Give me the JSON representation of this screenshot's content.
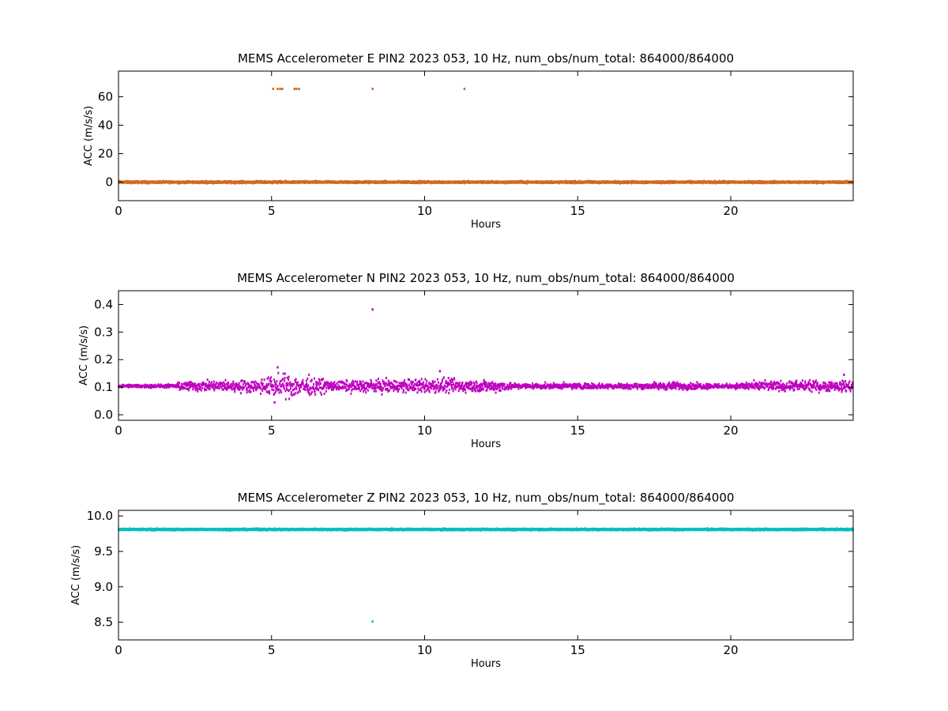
{
  "chart_data": [
    {
      "type": "scatter",
      "title": "MEMS Accelerometer E PIN2 2023 053, 10 Hz, num_obs/num_total: 864000/864000",
      "xlabel": "Hours",
      "ylabel": "ACC (m/s/s)",
      "xlim": [
        0,
        24
      ],
      "ylim": [
        -13,
        78
      ],
      "xticks": [
        0,
        5,
        10,
        15,
        20
      ],
      "yticks": [
        0,
        20,
        40,
        60
      ],
      "xtick_labels": [
        "0",
        "5",
        "10",
        "15",
        "20"
      ],
      "ytick_labels": [
        "0",
        "20",
        "40",
        "60"
      ],
      "grid": false,
      "color": "#d2691e",
      "baseline": {
        "y_mean": 0.0,
        "spread": 0.6
      },
      "outliers": [
        {
          "x": 5.05,
          "y": 65.5
        },
        {
          "x": 5.2,
          "y": 65.5
        },
        {
          "x": 5.28,
          "y": 65.5
        },
        {
          "x": 5.35,
          "y": 65.5
        },
        {
          "x": 5.75,
          "y": 65.5
        },
        {
          "x": 5.82,
          "y": 65.5
        },
        {
          "x": 5.9,
          "y": 65.5
        },
        {
          "x": 8.3,
          "y": 65.5
        },
        {
          "x": 11.3,
          "y": 65.5
        }
      ]
    },
    {
      "type": "scatter",
      "title": "MEMS Accelerometer N PIN2 2023 053, 10 Hz, num_obs/num_total: 864000/864000",
      "xlabel": "Hours",
      "ylabel": "ACC (m/s/s)",
      "xlim": [
        0,
        24
      ],
      "ylim": [
        -0.02,
        0.45
      ],
      "xticks": [
        0,
        5,
        10,
        15,
        20
      ],
      "yticks": [
        0.0,
        0.1,
        0.2,
        0.3,
        0.4
      ],
      "xtick_labels": [
        "0",
        "5",
        "10",
        "15",
        "20"
      ],
      "ytick_labels": [
        "0.0",
        "0.1",
        "0.2",
        "0.3",
        "0.4"
      ],
      "grid": false,
      "color": "#bf00bf",
      "baseline": {
        "y_mean": 0.104
      },
      "spread_profile": [
        [
          0,
          0.004
        ],
        [
          1.9,
          0.005
        ],
        [
          2.0,
          0.014
        ],
        [
          4.5,
          0.018
        ],
        [
          5.0,
          0.03
        ],
        [
          5.6,
          0.035
        ],
        [
          6.4,
          0.025
        ],
        [
          7.0,
          0.015
        ],
        [
          8.0,
          0.018
        ],
        [
          10.5,
          0.022
        ],
        [
          12.5,
          0.016
        ],
        [
          13.0,
          0.008
        ],
        [
          17.0,
          0.008
        ],
        [
          18.0,
          0.012
        ],
        [
          20.0,
          0.006
        ],
        [
          20.8,
          0.014
        ],
        [
          24,
          0.016
        ]
      ],
      "outliers": [
        {
          "x": 8.3,
          "y": 0.382
        },
        {
          "x": 5.2,
          "y": 0.172
        },
        {
          "x": 10.5,
          "y": 0.158
        },
        {
          "x": 23.7,
          "y": 0.145
        },
        {
          "x": 5.1,
          "y": 0.045
        }
      ]
    },
    {
      "type": "scatter",
      "title": "MEMS Accelerometer Z PIN2 2023 053, 10 Hz, num_obs/num_total: 864000/864000",
      "xlabel": "Hours",
      "ylabel": "ACC (m/s/s)",
      "xlim": [
        0,
        24
      ],
      "ylim": [
        8.25,
        10.08
      ],
      "xticks": [
        0,
        5,
        10,
        15,
        20
      ],
      "yticks": [
        8.5,
        9.0,
        9.5,
        10.0
      ],
      "xtick_labels": [
        "0",
        "5",
        "10",
        "15",
        "20"
      ],
      "ytick_labels": [
        "8.5",
        "9.0",
        "9.5",
        "10.0"
      ],
      "grid": false,
      "color": "#00bfbf",
      "baseline": {
        "y_mean": 9.81,
        "spread": 0.01
      },
      "outliers": [
        {
          "x": 8.3,
          "y": 8.51
        }
      ]
    }
  ]
}
